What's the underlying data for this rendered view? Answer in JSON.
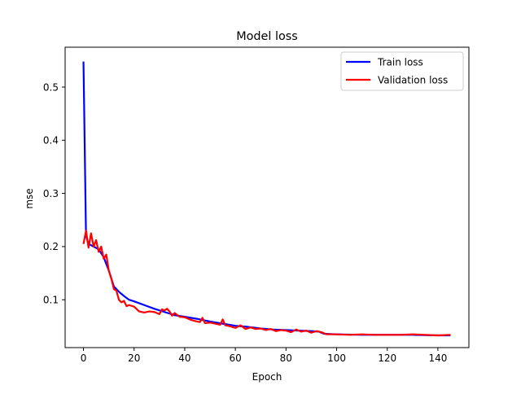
{
  "chart_data": {
    "type": "line",
    "title": "Model loss",
    "xlabel": "Epoch",
    "ylabel": "mse",
    "xlim": [
      -7.25,
      152.25
    ],
    "ylim": [
      0.01,
      0.575
    ],
    "xticks": [
      0,
      20,
      40,
      60,
      80,
      100,
      120,
      140
    ],
    "yticks": [
      0.1,
      0.2,
      0.3,
      0.4,
      0.5
    ],
    "xtick_labels": [
      "0",
      "20",
      "40",
      "60",
      "80",
      "100",
      "120",
      "140"
    ],
    "ytick_labels": [
      "0.1",
      "0.2",
      "0.3",
      "0.4",
      "0.5"
    ],
    "legend_placement": "top-right",
    "grid": false,
    "series": [
      {
        "name": "Train loss",
        "color": "#0000ff",
        "x": [
          0,
          1,
          2,
          4,
          6,
          8,
          10,
          12,
          14,
          16,
          18,
          20,
          24,
          28,
          32,
          36,
          40,
          45,
          50,
          55,
          60,
          65,
          70,
          75,
          80,
          85,
          90,
          93,
          95,
          100,
          110,
          120,
          130,
          140,
          145
        ],
        "values": [
          0.548,
          0.22,
          0.205,
          0.2,
          0.195,
          0.18,
          0.155,
          0.125,
          0.115,
          0.107,
          0.1,
          0.097,
          0.09,
          0.083,
          0.077,
          0.071,
          0.068,
          0.064,
          0.059,
          0.055,
          0.051,
          0.049,
          0.046,
          0.044,
          0.043,
          0.042,
          0.041,
          0.04,
          0.036,
          0.035,
          0.034,
          0.034,
          0.034,
          0.033,
          0.033
        ]
      },
      {
        "name": "Validation loss",
        "color": "#ff0000",
        "x": [
          0,
          1,
          2,
          3,
          4,
          5,
          6,
          7,
          8,
          9,
          10,
          11,
          12,
          13,
          14,
          15,
          16,
          17,
          18,
          20,
          22,
          24,
          26,
          28,
          30,
          31,
          32,
          33,
          34,
          35,
          36,
          38,
          40,
          42,
          44,
          46,
          47,
          48,
          50,
          52,
          54,
          55,
          56,
          58,
          60,
          62,
          64,
          66,
          68,
          70,
          72,
          74,
          76,
          78,
          80,
          82,
          84,
          86,
          88,
          90,
          92,
          94,
          96,
          100,
          105,
          110,
          115,
          120,
          125,
          130,
          135,
          140,
          145
        ],
        "values": [
          0.205,
          0.23,
          0.198,
          0.225,
          0.2,
          0.212,
          0.19,
          0.2,
          0.177,
          0.185,
          0.155,
          0.14,
          0.12,
          0.117,
          0.1,
          0.095,
          0.098,
          0.088,
          0.09,
          0.087,
          0.078,
          0.076,
          0.078,
          0.077,
          0.073,
          0.082,
          0.08,
          0.083,
          0.078,
          0.07,
          0.075,
          0.068,
          0.067,
          0.063,
          0.06,
          0.058,
          0.066,
          0.056,
          0.057,
          0.055,
          0.053,
          0.063,
          0.052,
          0.05,
          0.047,
          0.052,
          0.045,
          0.048,
          0.045,
          0.046,
          0.043,
          0.045,
          0.041,
          0.043,
          0.042,
          0.039,
          0.044,
          0.04,
          0.042,
          0.038,
          0.041,
          0.039,
          0.035,
          0.035,
          0.034,
          0.035,
          0.034,
          0.034,
          0.034,
          0.035,
          0.034,
          0.033,
          0.034
        ]
      }
    ]
  }
}
